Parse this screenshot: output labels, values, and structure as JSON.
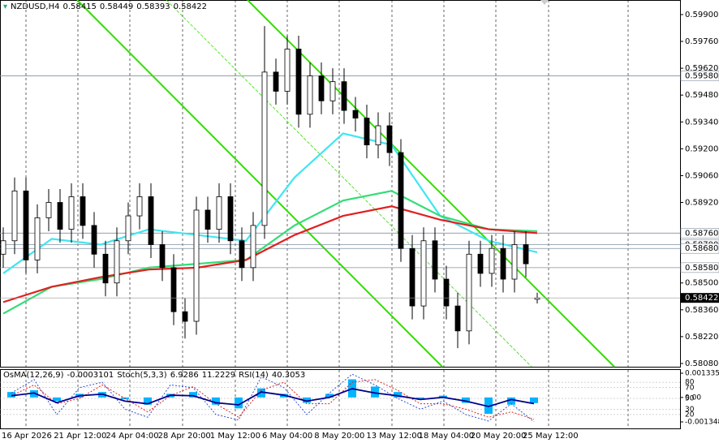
{
  "chart_data": [
    {
      "type": "candlestick",
      "title": "NZDUSD,H4",
      "color": "#000000",
      "grid": true,
      "open": [
        0.5865,
        0.5872,
        0.5898,
        0.5862,
        0.5884,
        0.5892,
        0.5878,
        0.5895,
        0.588,
        0.5865,
        0.585,
        0.5872,
        0.5885,
        0.5895,
        0.587,
        0.5858,
        0.5835,
        0.583,
        0.5888,
        0.5878,
        0.5895,
        0.5872,
        0.5858,
        0.588,
        0.596,
        0.595,
        0.5972,
        0.5938,
        0.5958,
        0.5945,
        0.5955,
        0.594,
        0.5936,
        0.5922,
        0.5932,
        0.5918,
        0.5868,
        0.5838,
        0.5872,
        0.5852,
        0.5838,
        0.5825,
        0.5865,
        0.5855,
        0.5868,
        0.5852,
        0.587,
        0.58415
      ],
      "high": [
        0.5879,
        0.5905,
        0.5905,
        0.5891,
        0.5899,
        0.5899,
        0.5902,
        0.5902,
        0.5887,
        0.5872,
        0.5879,
        0.5892,
        0.5902,
        0.5902,
        0.5877,
        0.5865,
        0.5842,
        0.5895,
        0.5895,
        0.5902,
        0.5902,
        0.5879,
        0.5887,
        0.5984,
        0.5967,
        0.5979,
        0.5979,
        0.5965,
        0.5965,
        0.5962,
        0.5962,
        0.5947,
        0.5943,
        0.5939,
        0.5939,
        0.5925,
        0.5875,
        0.5879,
        0.5879,
        0.5859,
        0.5845,
        0.5872,
        0.5872,
        0.5875,
        0.5875,
        0.5877,
        0.5877,
        0.58449
      ],
      "low": [
        0.5858,
        0.5865,
        0.5855,
        0.5855,
        0.5877,
        0.5871,
        0.5871,
        0.5873,
        0.5858,
        0.5843,
        0.5843,
        0.5865,
        0.5878,
        0.5863,
        0.5851,
        0.5828,
        0.5821,
        0.5823,
        0.5871,
        0.5871,
        0.5865,
        0.5851,
        0.5851,
        0.5873,
        0.5943,
        0.5943,
        0.5931,
        0.5931,
        0.5938,
        0.5938,
        0.5933,
        0.5929,
        0.5915,
        0.5915,
        0.5911,
        0.5861,
        0.5831,
        0.5831,
        0.5845,
        0.5831,
        0.5816,
        0.5818,
        0.5848,
        0.5848,
        0.5845,
        0.5845,
        0.5853,
        0.58393
      ],
      "close": [
        0.5872,
        0.5898,
        0.5862,
        0.5884,
        0.5892,
        0.5878,
        0.5895,
        0.588,
        0.5865,
        0.585,
        0.5872,
        0.5885,
        0.5895,
        0.587,
        0.5858,
        0.5835,
        0.583,
        0.5888,
        0.5878,
        0.5895,
        0.5872,
        0.5858,
        0.588,
        0.596,
        0.595,
        0.5972,
        0.5938,
        0.5958,
        0.5945,
        0.5955,
        0.594,
        0.5936,
        0.5922,
        0.5932,
        0.5918,
        0.5868,
        0.5838,
        0.5872,
        0.5852,
        0.5838,
        0.5825,
        0.5865,
        0.5855,
        0.5868,
        0.5852,
        0.587,
        0.586,
        0.58422
      ],
      "ylim": [
        0.58063,
        0.59976
      ],
      "yticks": [
        {
          "value": 0.599,
          "label": "0.59900"
        },
        {
          "value": 0.5976,
          "label": "0.59760"
        },
        {
          "value": 0.5962,
          "label": "0.59620"
        },
        {
          "value": 0.5948,
          "label": "0.59480"
        },
        {
          "value": 0.5934,
          "label": "0.59340"
        },
        {
          "value": 0.592,
          "label": "0.59200"
        },
        {
          "value": 0.5906,
          "label": "0.59060"
        },
        {
          "value": 0.5892,
          "label": "0.58920"
        },
        {
          "value": 0.585,
          "label": "0.58500"
        },
        {
          "value": 0.5836,
          "label": "0.58360"
        },
        {
          "value": 0.5822,
          "label": "0.58220"
        },
        {
          "value": 0.5808,
          "label": "0.58080"
        }
      ],
      "levels": [
        {
          "value": 0.5958,
          "label": "0.59580"
        },
        {
          "value": 0.5876,
          "label": "0.58760"
        },
        {
          "value": 0.587,
          "label": "0.58700"
        },
        {
          "value": 0.5868,
          "label": "0.58680"
        },
        {
          "value": 0.5858,
          "label": "0.58580"
        }
      ],
      "ma": [
        {
          "color": "#3fe6f0",
          "values": [
            0.5855,
            0.5873,
            0.587,
            0.5878,
            0.5875,
            0.5872,
            0.5905,
            0.5928,
            0.5922,
            0.5885,
            0.5872,
            0.5866
          ]
        },
        {
          "color": "#33dd77",
          "values": [
            0.5834,
            0.5848,
            0.5852,
            0.5858,
            0.586,
            0.5862,
            0.588,
            0.5893,
            0.5898,
            0.5885,
            0.5878,
            0.5877
          ]
        },
        {
          "color": "#e02020",
          "values": [
            0.584,
            0.5848,
            0.5853,
            0.5857,
            0.5858,
            0.5862,
            0.5875,
            0.5885,
            0.589,
            0.5883,
            0.5878,
            0.5876
          ]
        }
      ],
      "xtick_labels": [
        "16 Apr 2026",
        "21 Apr 12:00",
        "24 Apr 04:00",
        "28 Apr 20:00",
        "1 May 12:00",
        "6 May 04:00",
        "8 May 20:00",
        "13 May 12:00",
        "18 May 04:00",
        "20 May 20:00",
        "25 May 12:00"
      ]
    },
    {
      "type": "oscillator",
      "title": "OsMA(12,26,9)",
      "stoch_title": "Stoch(5,3,3)",
      "rsi_title": "RSI(14)",
      "osma": {
        "color": "#00b4ff",
        "values": [
          0.0003,
          0.0004,
          -0.0002,
          0.0002,
          0.0003,
          -0.0001,
          -0.0004,
          0.0002,
          0.0003,
          -0.0004,
          -0.0006,
          0.0005,
          0.0002,
          -0.0003,
          0.0002,
          0.001,
          0.0006,
          0.0003,
          -0.0001,
          0.0001,
          -0.0003,
          -0.0009,
          -0.0004,
          -0.0003101
        ]
      },
      "stoch": {
        "color": "#3050d0",
        "values": [
          60,
          85,
          20,
          70,
          80,
          30,
          15,
          75,
          70,
          20,
          10,
          90,
          70,
          20,
          60,
          95,
          75,
          50,
          30,
          45,
          20,
          8,
          40,
          6.9286
        ]
      },
      "stoch_signal": {
        "color": "#e02020",
        "values": [
          55,
          75,
          40,
          50,
          75,
          50,
          25,
          55,
          72,
          40,
          15,
          65,
          80,
          40,
          40,
          80,
          85,
          65,
          40,
          40,
          30,
          15,
          25,
          11.2229
        ]
      },
      "rsi": {
        "color": "#00008b",
        "values": [
          55,
          60,
          42,
          55,
          58,
          45,
          40,
          56,
          55,
          42,
          38,
          62,
          56,
          45,
          52,
          68,
          60,
          55,
          48,
          52,
          45,
          35,
          48,
          40.3053
        ]
      },
      "ylim": [
        -0.001706,
        0.001559
      ],
      "yticks": [
        0.001335,
        {
          "value": 0,
          "label": "0.00"
        },
        -0.001348
      ],
      "y2lim": [
        -5.7,
        104.3
      ],
      "y2ticks": [
        80,
        70,
        50,
        30,
        20
      ]
    }
  ]
}
